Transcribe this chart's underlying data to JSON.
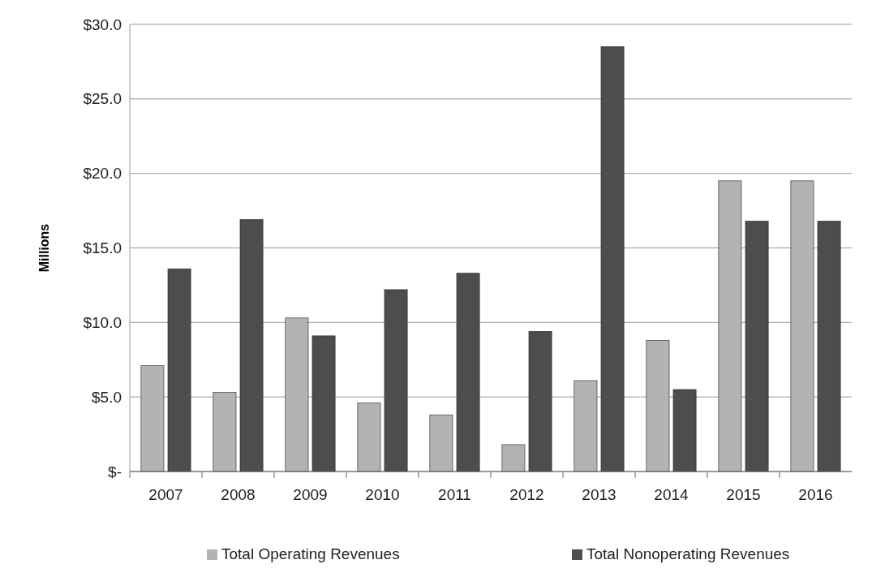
{
  "chart_data": {
    "type": "bar",
    "ylabel": "Millions",
    "categories": [
      "2007",
      "2008",
      "2009",
      "2010",
      "2011",
      "2012",
      "2013",
      "2014",
      "2015",
      "2016"
    ],
    "series": [
      {
        "name": "Total Operating Revenues",
        "color": "#b3b3b3",
        "values": [
          7.1,
          5.3,
          10.3,
          4.6,
          3.8,
          1.8,
          6.1,
          8.8,
          19.5,
          19.5
        ]
      },
      {
        "name": "Total Nonoperating Revenues",
        "color": "#4d4d4d",
        "values": [
          13.6,
          16.9,
          9.1,
          12.2,
          13.3,
          9.4,
          28.5,
          5.5,
          16.8,
          16.8
        ]
      }
    ],
    "ylim": [
      0,
      30
    ],
    "yticks": [
      {
        "value": 0,
        "label": "$-"
      },
      {
        "value": 5,
        "label": "$5.0"
      },
      {
        "value": 10,
        "label": "$10.0"
      },
      {
        "value": 15,
        "label": "$15.0"
      },
      {
        "value": 20,
        "label": "$20.0"
      },
      {
        "value": 25,
        "label": "$25.0"
      },
      {
        "value": 30,
        "label": "$30.0"
      }
    ],
    "grid": "y",
    "legend": "bottom"
  }
}
